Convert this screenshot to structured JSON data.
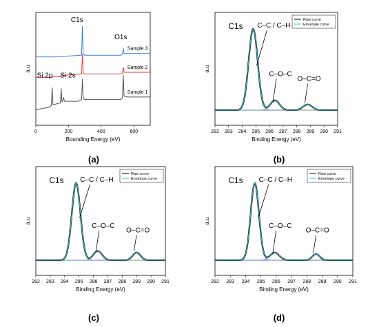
{
  "chart_data": [
    {
      "type": "line",
      "panel_label": "(a)",
      "xlabel": "Bounding Energy (eV)",
      "ylabel": "a.u",
      "xlim": [
        0,
        700
      ],
      "x_ticks": [
        0,
        200,
        400,
        600
      ],
      "grid": false,
      "series": [
        {
          "name": "Sample 1",
          "color": "#555555",
          "x": [
            0,
            80,
            95,
            100,
            105,
            150,
            155,
            160,
            170,
            175,
            260,
            280,
            285,
            290,
            300,
            520,
            530,
            535,
            540,
            560,
            700
          ],
          "y": [
            0.02,
            0.05,
            0.07,
            0.28,
            0.08,
            0.1,
            0.27,
            0.11,
            0.16,
            0.12,
            0.12,
            0.14,
            0.38,
            0.15,
            0.14,
            0.14,
            0.16,
            0.43,
            0.18,
            0.17,
            0.17
          ]
        },
        {
          "name": "Sample 2",
          "color": "#e03c3c",
          "x": [
            0,
            100,
            105,
            150,
            155,
            200,
            280,
            285,
            290,
            300,
            520,
            530,
            535,
            540,
            560,
            700
          ],
          "y": [
            0.4,
            0.4,
            0.41,
            0.41,
            0.42,
            0.43,
            0.44,
            0.67,
            0.45,
            0.44,
            0.44,
            0.45,
            0.52,
            0.46,
            0.46,
            0.46
          ]
        },
        {
          "name": "Sample 3",
          "color": "#3c7fd6",
          "x": [
            0,
            150,
            200,
            280,
            285,
            290,
            300,
            520,
            530,
            535,
            540,
            560,
            700
          ],
          "y": [
            0.64,
            0.64,
            0.65,
            0.66,
            1.0,
            0.67,
            0.66,
            0.66,
            0.67,
            0.74,
            0.68,
            0.68,
            0.68
          ]
        }
      ],
      "annotations": [
        "C1s",
        "O1s",
        "Si 2p",
        "Si 2s"
      ]
    },
    {
      "type": "line",
      "panel_label": "(b)",
      "xlabel": "Binding Energy (eV)",
      "ylabel": "a.u",
      "xlim": [
        282,
        291
      ],
      "x_ticks": [
        282,
        283,
        284,
        285,
        286,
        287,
        288,
        289,
        290,
        291
      ],
      "grid": false,
      "legend": "top-right",
      "series": [
        {
          "name": "Raw curve",
          "color": "#000000"
        },
        {
          "name": "Envelope curve",
          "color": "#3fbfbf"
        }
      ],
      "peaks": [
        {
          "label": "C–C / C–H",
          "center": 284.8,
          "height": 1.0,
          "width": 0.55,
          "color": "#d94a8a"
        },
        {
          "label": "C–O–C",
          "center": 286.4,
          "height": 0.12,
          "width": 0.55,
          "color": "#4fc04f"
        },
        {
          "label": "O–C=O",
          "center": 288.8,
          "height": 0.07,
          "width": 0.55,
          "color": "#3f7fd0"
        }
      ],
      "annotations": [
        "C1s"
      ]
    },
    {
      "type": "line",
      "panel_label": "(c)",
      "xlabel": "Binding Energy (eV)",
      "ylabel": "a.u",
      "xlim": [
        282,
        291
      ],
      "x_ticks": [
        282,
        283,
        284,
        285,
        286,
        287,
        288,
        289,
        290,
        291
      ],
      "grid": false,
      "legend": "top-right",
      "series": [
        {
          "name": "Raw curve",
          "color": "#000000"
        },
        {
          "name": "Envelope curve",
          "color": "#3fbfbf"
        }
      ],
      "peaks": [
        {
          "label": "C–C / C–H",
          "center": 284.8,
          "height": 1.0,
          "width": 0.5,
          "color": "#d94a8a"
        },
        {
          "label": "C–O–C",
          "center": 286.3,
          "height": 0.12,
          "width": 0.5,
          "color": "#4fc04f"
        },
        {
          "label": "O–C=O",
          "center": 289.0,
          "height": 0.1,
          "width": 0.45,
          "color": "#3f7fd0"
        }
      ],
      "annotations": [
        "C1s"
      ]
    },
    {
      "type": "line",
      "panel_label": "(d)",
      "xlabel": "Binding Energy (eV)",
      "ylabel": "a.u",
      "xlim": [
        282,
        291
      ],
      "x_ticks": [
        282,
        283,
        284,
        285,
        286,
        287,
        288,
        289,
        290,
        291
      ],
      "grid": false,
      "legend": "top-right",
      "series": [
        {
          "name": "Raw curve",
          "color": "#000000"
        },
        {
          "name": "Envelope curve",
          "color": "#3fbfbf"
        }
      ],
      "peaks": [
        {
          "label": "C–C / C–H",
          "center": 284.6,
          "height": 1.0,
          "width": 0.45,
          "color": "#d94a8a"
        },
        {
          "label": "C–O–C",
          "center": 285.9,
          "height": 0.1,
          "width": 0.5,
          "color": "#3f7fd0"
        },
        {
          "label": "O–C=O",
          "center": 288.6,
          "height": 0.08,
          "width": 0.4,
          "color": "#3f7fd0"
        }
      ],
      "annotations": [
        "C1s"
      ]
    }
  ]
}
